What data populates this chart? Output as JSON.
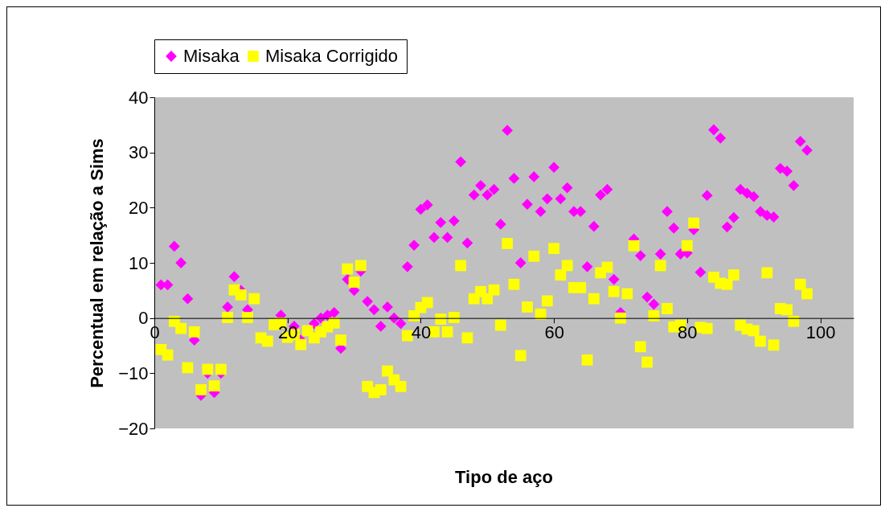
{
  "chart_data": {
    "type": "scatter",
    "xlabel": "Tipo de aço",
    "ylabel": "Percentual em relação a Sims",
    "x": [
      1,
      2,
      3,
      4,
      5,
      6,
      7,
      8,
      9,
      10,
      11,
      12,
      13,
      14,
      15,
      16,
      17,
      18,
      19,
      20,
      21,
      22,
      23,
      24,
      25,
      26,
      27,
      28,
      29,
      30,
      31,
      32,
      33,
      34,
      35,
      36,
      37,
      38,
      39,
      40,
      41,
      42,
      43,
      44,
      45,
      46,
      47,
      48,
      49,
      50,
      51,
      52,
      53,
      54,
      55,
      56,
      57,
      58,
      59,
      60,
      61,
      62,
      63,
      64,
      65,
      66,
      67,
      68,
      69,
      70,
      71,
      72,
      73,
      74,
      75,
      76,
      77,
      78,
      79,
      80,
      81,
      82,
      83,
      84,
      85,
      86,
      87,
      88,
      89,
      90,
      91,
      92,
      93,
      94,
      95,
      96,
      97,
      98
    ],
    "series": [
      {
        "name": "Misaka",
        "color": "#ff00ff",
        "marker": "diamond",
        "values": [
          6,
          6,
          13,
          10,
          3.5,
          -4,
          -14,
          -10,
          -13.5,
          -10,
          2,
          7.5,
          5,
          1.5,
          null,
          null,
          null,
          null,
          0.5,
          null,
          -1.5,
          -4,
          null,
          -1,
          0,
          0.5,
          1,
          -5.5,
          7,
          5,
          8.5,
          3,
          1.5,
          -1.5,
          2,
          0,
          -1,
          9.3,
          13.2,
          19.7,
          20.5,
          14.6,
          17.3,
          14.6,
          17.6,
          28.3,
          13.6,
          22.3,
          24,
          22.3,
          23.3,
          17,
          34,
          25.3,
          10,
          20.6,
          25.6,
          19.3,
          21.6,
          27.3,
          21.6,
          23.6,
          19.3,
          19.3,
          9.3,
          16.6,
          22.3,
          23.3,
          7,
          1,
          null,
          14.3,
          11.3,
          3.8,
          2.5,
          11.6,
          19.3,
          16.3,
          11.6,
          11.8,
          16,
          8.3,
          22.2,
          34.1,
          32.6,
          16.5,
          18.2,
          23.3,
          22.6,
          22,
          19.3,
          18.6,
          18.3,
          27.1,
          26.6,
          24,
          32,
          30.4
        ]
      },
      {
        "name": "Misaka Corrigido",
        "color": "#ffff00",
        "marker": "square",
        "values": [
          -5.7,
          -6.7,
          -0.6,
          -1.9,
          -9,
          -2.5,
          -13,
          -9.3,
          -12.3,
          -9.3,
          0.1,
          5.1,
          4.2,
          0.1,
          3.5,
          -3.6,
          -4.2,
          -1.2,
          -0.9,
          -3.5,
          -3,
          -4.8,
          -2.3,
          -3.6,
          -2.5,
          -1.6,
          -0.9,
          -4,
          8.9,
          6.5,
          9.5,
          -12.4,
          -13.5,
          -13,
          -9.6,
          -11.2,
          -12.4,
          -3.2,
          0.4,
          1.9,
          2.8,
          -2.5,
          -0.2,
          -2.5,
          0.1,
          9.5,
          -3.6,
          3.5,
          4.8,
          3.5,
          5.1,
          -1.3,
          13.5,
          6.1,
          -6.8,
          2,
          11.2,
          0.7,
          3.1,
          12.6,
          7.8,
          9.5,
          5.5,
          5.5,
          -7.6,
          3.5,
          8.2,
          9.2,
          4.8,
          0,
          4.4,
          13.1,
          -5.2,
          -8,
          0.4,
          9.5,
          1.7,
          -1.6,
          -1.3,
          13.1,
          17.2,
          -1.7,
          -1.9,
          7.4,
          6.3,
          6.1,
          7.8,
          -1.3,
          -2,
          -2.3,
          -4.2,
          8.2,
          -4.9,
          1.7,
          1.5,
          -0.6,
          6.1,
          4.4
        ]
      }
    ],
    "xlim": [
      0,
      105
    ],
    "xticks": [
      0,
      20,
      40,
      60,
      80,
      100
    ],
    "ylim": [
      -20,
      40
    ],
    "yticks": [
      -20,
      -10,
      0,
      10,
      20,
      30,
      40
    ],
    "grid": false,
    "legend": "top"
  }
}
